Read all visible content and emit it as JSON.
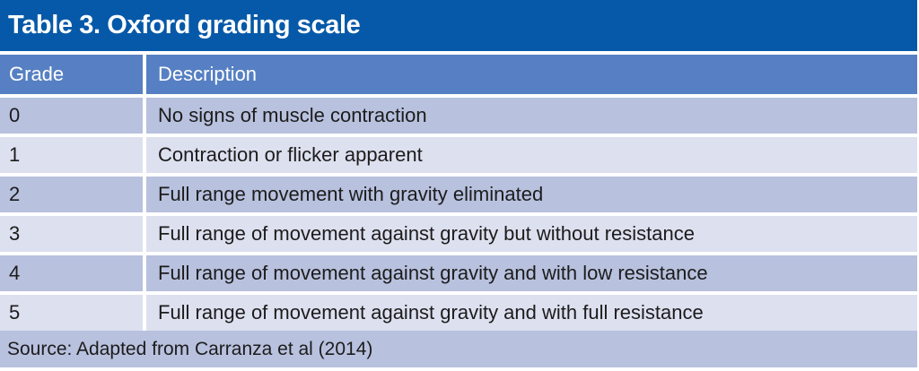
{
  "colors": {
    "title_bar": "#0659a8",
    "header_row": "#5680c3",
    "row_dark": "#b8c1de",
    "row_light": "#dde0ef",
    "text_light": "#ffffff",
    "text_dark": "#1c1c1c"
  },
  "table": {
    "title": "Table 3. Oxford grading scale",
    "columns": {
      "grade": "Grade",
      "description": "Description"
    },
    "rows": [
      {
        "grade": "0",
        "description": "No signs of muscle contraction"
      },
      {
        "grade": "1",
        "description": "Contraction or flicker apparent"
      },
      {
        "grade": "2",
        "description": "Full range movement with gravity eliminated"
      },
      {
        "grade": "3",
        "description": "Full range of movement against gravity but without resistance"
      },
      {
        "grade": "4",
        "description": "Full range of movement against gravity and with low resistance"
      },
      {
        "grade": "5",
        "description": "Full range of movement against gravity and with full resistance"
      }
    ],
    "source": "Source: Adapted from Carranza et al (2014)"
  }
}
